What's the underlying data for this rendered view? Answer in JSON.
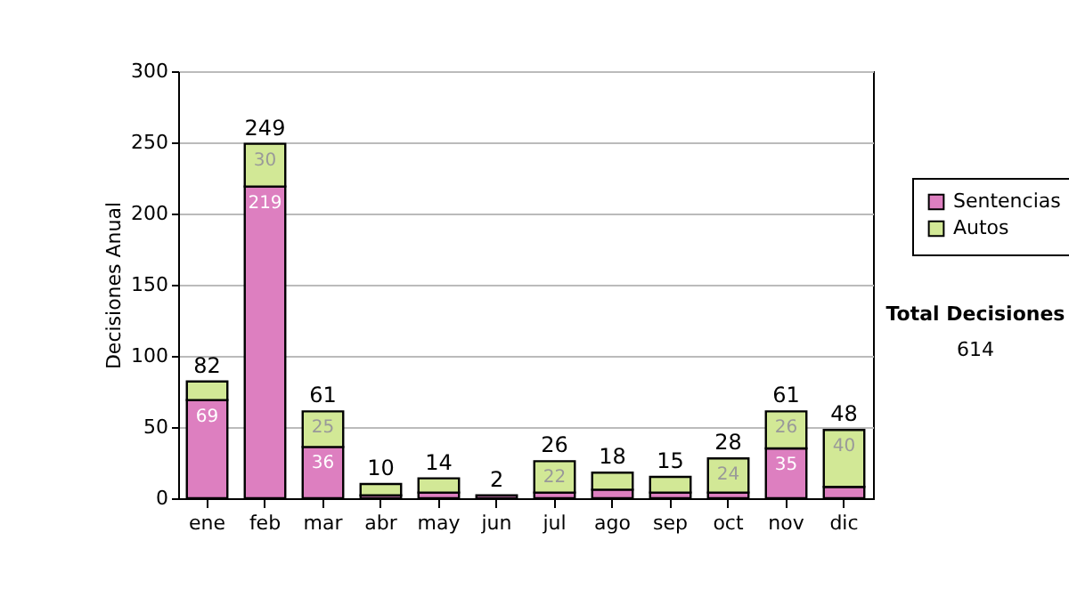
{
  "chart_data": {
    "type": "bar",
    "ylabel": "Decisiones Anual",
    "stacked": true,
    "categories": [
      "ene",
      "feb",
      "mar",
      "abr",
      "may",
      "jun",
      "jul",
      "ago",
      "sep",
      "oct",
      "nov",
      "dic"
    ],
    "series": [
      {
        "name": "Sentencias",
        "color": "#dd7fc0",
        "values": [
          69,
          219,
          36,
          2,
          4,
          2,
          4,
          6,
          4,
          4,
          35,
          8
        ],
        "value_labels": [
          "69",
          "219",
          "36",
          null,
          null,
          null,
          null,
          null,
          null,
          null,
          "35",
          null
        ]
      },
      {
        "name": "Autos",
        "color": "#d2e896",
        "values": [
          13,
          30,
          25,
          8,
          10,
          null,
          22,
          12,
          11,
          24,
          26,
          40
        ],
        "value_labels": [
          null,
          "30",
          "25",
          null,
          null,
          null,
          "22",
          null,
          null,
          "24",
          "26",
          "40"
        ]
      }
    ],
    "totals": [
      "82",
      "249",
      "61",
      "10",
      "14",
      "2",
      "26",
      "18",
      "15",
      "28",
      "61",
      "48"
    ],
    "ylim": [
      0,
      300
    ],
    "yticks": [
      0,
      50,
      100,
      150,
      200,
      250,
      300
    ],
    "grid": "y",
    "legend": "right",
    "annotations": [
      "Total Decisiones",
      "614"
    ]
  }
}
